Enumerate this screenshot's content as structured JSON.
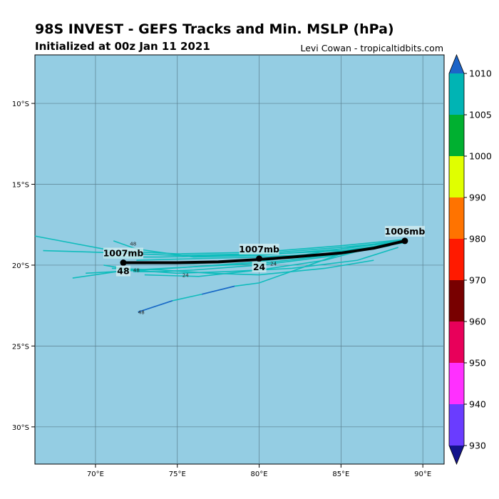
{
  "header": {
    "title": "98S INVEST - GEFS Tracks and Min. MSLP (hPa)",
    "subtitle": "Initialized at 00z Jan 11 2021",
    "credit": "Levi Cowan - tropicaltidbits.com"
  },
  "chart_data": {
    "type": "line",
    "title": "98S INVEST - GEFS Tracks and Min. MSLP (hPa)",
    "xlim": [
      66.3,
      91.3
    ],
    "ylim": [
      -32.3,
      -7.0
    ],
    "x_ticks": [
      {
        "v": 70,
        "label": "70°E"
      },
      {
        "v": 75,
        "label": "75°E"
      },
      {
        "v": 80,
        "label": "80°E"
      },
      {
        "v": 85,
        "label": "85°E"
      },
      {
        "v": 90,
        "label": "90°E"
      }
    ],
    "y_ticks": [
      {
        "v": -10,
        "label": "10°S"
      },
      {
        "v": -15,
        "label": "15°S"
      },
      {
        "v": -20,
        "label": "20°S"
      },
      {
        "v": -25,
        "label": "25°S"
      },
      {
        "v": -30,
        "label": "30°S"
      }
    ],
    "grid": true,
    "colors": {
      "ocean": "#94cde3",
      "member": "#10bcbc",
      "member_low": "#1c64c8",
      "mean": "#000000"
    },
    "ensemble_mean": {
      "points": [
        [
          88.9,
          -18.5
        ],
        [
          87,
          -18.95
        ],
        [
          85,
          -19.25
        ],
        [
          82,
          -19.5
        ],
        [
          80,
          -19.65
        ],
        [
          77.5,
          -19.8
        ],
        [
          75,
          -19.85
        ],
        [
          71.7,
          -19.85
        ]
      ],
      "labels": [
        {
          "lon": 88.9,
          "lat": -18.5,
          "text": "1006mb",
          "hour": ""
        },
        {
          "lon": 80,
          "lat": -19.6,
          "text": "1007mb",
          "hour": "24"
        },
        {
          "lon": 71.7,
          "lat": -19.85,
          "text": "1007mb",
          "hour": "48"
        }
      ]
    },
    "members": [
      [
        [
          89,
          -18.4
        ],
        [
          85,
          -18.8
        ],
        [
          80,
          -19.2
        ],
        [
          75,
          -19.3
        ],
        [
          71,
          -19.1
        ],
        [
          66.3,
          -18.2
        ]
      ],
      [
        [
          89,
          -18.5
        ],
        [
          85,
          -18.9
        ],
        [
          80,
          -19.3
        ],
        [
          75,
          -19.4
        ],
        [
          70,
          -19.2
        ],
        [
          66.8,
          -19.1
        ]
      ],
      [
        [
          89,
          -18.4
        ],
        [
          85,
          -19.0
        ],
        [
          80,
          -19.4
        ],
        [
          76,
          -19.5
        ],
        [
          72.5,
          -19.0
        ],
        [
          71.1,
          -18.5
        ]
      ],
      [
        [
          89,
          -18.6
        ],
        [
          85,
          -19.2
        ],
        [
          80,
          -19.7
        ],
        [
          76,
          -19.9
        ],
        [
          72,
          -19.9
        ]
      ],
      [
        [
          89,
          -18.5
        ],
        [
          85,
          -19.3
        ],
        [
          80,
          -19.9
        ],
        [
          76,
          -20.1
        ],
        [
          72.3,
          -20.3
        ],
        [
          70.5,
          -20.0
        ]
      ],
      [
        [
          88.5,
          -18.9
        ],
        [
          86,
          -19.7
        ],
        [
          82,
          -20.2
        ],
        [
          78,
          -20.4
        ],
        [
          75,
          -20.5
        ],
        [
          72,
          -20.3
        ],
        [
          68.6,
          -20.8
        ]
      ],
      [
        [
          89,
          -18.5
        ],
        [
          85,
          -19.0
        ],
        [
          80,
          -19.8
        ],
        [
          76,
          -20.1
        ],
        [
          73,
          -20.3
        ],
        [
          69.4,
          -20.5
        ]
      ],
      [
        [
          88,
          -18.7
        ],
        [
          84,
          -19.3
        ],
        [
          80,
          -19.5
        ],
        [
          76,
          -19.6
        ],
        [
          72.5,
          -19.7
        ]
      ],
      [
        [
          88,
          -18.8
        ],
        [
          84,
          -19.5
        ],
        [
          80,
          -20.0
        ],
        [
          76,
          -20.3
        ],
        [
          74,
          -20.4
        ],
        [
          72.3,
          -20.4
        ]
      ],
      [
        [
          89,
          -18.6
        ],
        [
          85,
          -19.1
        ],
        [
          81,
          -19.3
        ],
        [
          78,
          -19.4
        ],
        [
          74,
          -19.5
        ],
        [
          70.5,
          -19.5
        ]
      ],
      [
        [
          88,
          -18.6
        ],
        [
          84,
          -19.7
        ],
        [
          80,
          -20.3
        ],
        [
          76.3,
          -20.7
        ],
        [
          73,
          -20.6
        ]
      ],
      [
        [
          87,
          -19.7
        ],
        [
          84,
          -20.2
        ],
        [
          80,
          -20.6
        ],
        [
          77,
          -20.5
        ],
        [
          74,
          -20.3
        ],
        [
          71,
          -20.2
        ]
      ],
      [
        [
          85,
          -19.3
        ],
        [
          80,
          -21.1
        ],
        [
          78.5,
          -21.3
        ]
      ]
    ],
    "low_member": [
      [
        78.5,
        -21.3
      ],
      [
        76.5,
        -21.8
      ],
      [
        74.7,
        -22.2
      ],
      [
        72.6,
        -22.9
      ]
    ],
    "hour_labels": [
      {
        "lon": 72.8,
        "lat": -22.9,
        "text": "48"
      },
      {
        "lon": 75.5,
        "lat": -20.6,
        "text": "24"
      },
      {
        "lon": 80.7,
        "lat": -19.9,
        "text": "24"
      },
      {
        "lon": 72.5,
        "lat": -20.3,
        "text": "48"
      },
      {
        "lon": 72.3,
        "lat": -19.0,
        "text": "48"
      }
    ],
    "colorbar": {
      "ticks": [
        930,
        940,
        950,
        960,
        970,
        980,
        990,
        1000,
        1005,
        1010
      ],
      "bands": [
        {
          "from": 930,
          "to": 940,
          "color": "#6a3cff"
        },
        {
          "from": 940,
          "to": 950,
          "color": "#ff30ff"
        },
        {
          "from": 950,
          "to": 960,
          "color": "#e8005a"
        },
        {
          "from": 960,
          "to": 970,
          "color": "#780000"
        },
        {
          "from": 970,
          "to": 980,
          "color": "#ff1a00"
        },
        {
          "from": 980,
          "to": 990,
          "color": "#ff7300"
        },
        {
          "from": 990,
          "to": 1000,
          "color": "#e0ff00"
        },
        {
          "from": 1000,
          "to": 1005,
          "color": "#00b030"
        },
        {
          "from": 1005,
          "to": 1010,
          "color": "#00b4b4"
        }
      ],
      "under_color": "#14148c",
      "over_color": "#1c64c8"
    }
  }
}
